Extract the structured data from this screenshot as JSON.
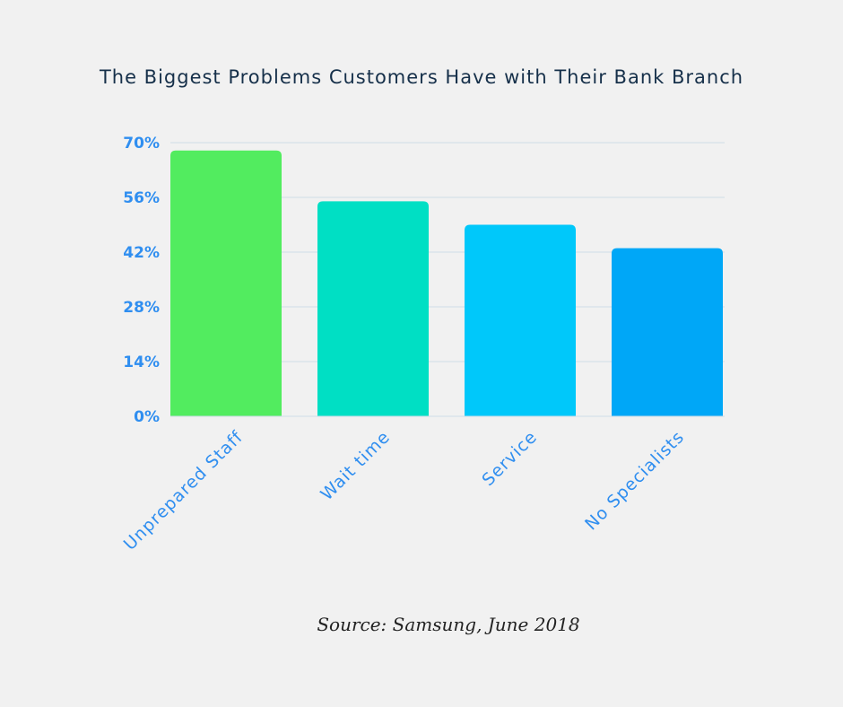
{
  "chart_data": {
    "type": "bar",
    "title": "The Biggest Problems Customers Have with Their Bank Branch",
    "categories": [
      "Unprepared Staff",
      "Wait time",
      "Service",
      "No Specialists"
    ],
    "values": [
      68,
      55,
      49,
      43
    ],
    "colors": [
      "#52ec5f",
      "#00dfc4",
      "#00c8fa",
      "#00a7f7"
    ],
    "yticks": [
      "0%",
      "14%",
      "28%",
      "42%",
      "56%",
      "70%"
    ],
    "ytick_values": [
      0,
      14,
      28,
      42,
      56,
      70
    ],
    "ylim": [
      0,
      70
    ],
    "xlabel": "",
    "ylabel": "",
    "grid": true,
    "source": "Source: Samsung, June 2018"
  }
}
